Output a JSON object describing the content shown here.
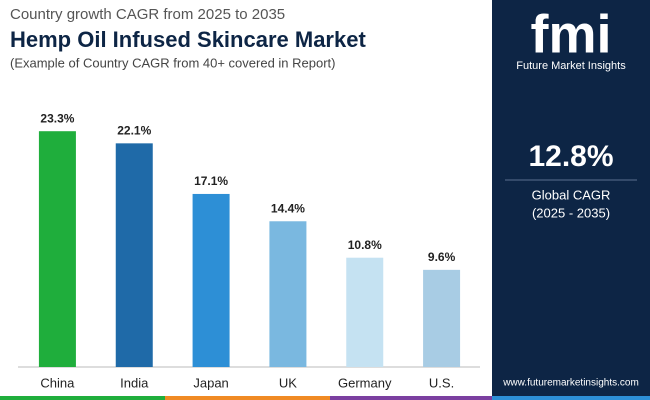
{
  "chart_data": {
    "type": "bar",
    "kicker": "Country growth CAGR from 2025 to 2035",
    "title": "Hemp Oil Infused Skincare Market",
    "subtitle": "(Example of Country CAGR from 40+ covered in Report)",
    "categories": [
      "China",
      "India",
      "Japan",
      "UK",
      "Germany",
      "U.S."
    ],
    "values": [
      23.3,
      22.1,
      17.1,
      14.4,
      10.8,
      9.6
    ],
    "value_labels": [
      "23.3%",
      "22.1%",
      "17.1%",
      "14.4%",
      "10.8%",
      "9.6%"
    ],
    "colors": [
      "#1fae3c",
      "#1f6aa8",
      "#2d8fd6",
      "#7ab8e0",
      "#c5e2f2",
      "#a8cce4"
    ],
    "ylim": [
      0,
      25
    ]
  },
  "panel": {
    "logo": "fmi",
    "brand": "Future Market Insights",
    "cagr": "12.8%",
    "cagr_label": "Global CAGR",
    "period": "(2025 - 2035)",
    "website": "www.futuremarketinsights.com"
  }
}
